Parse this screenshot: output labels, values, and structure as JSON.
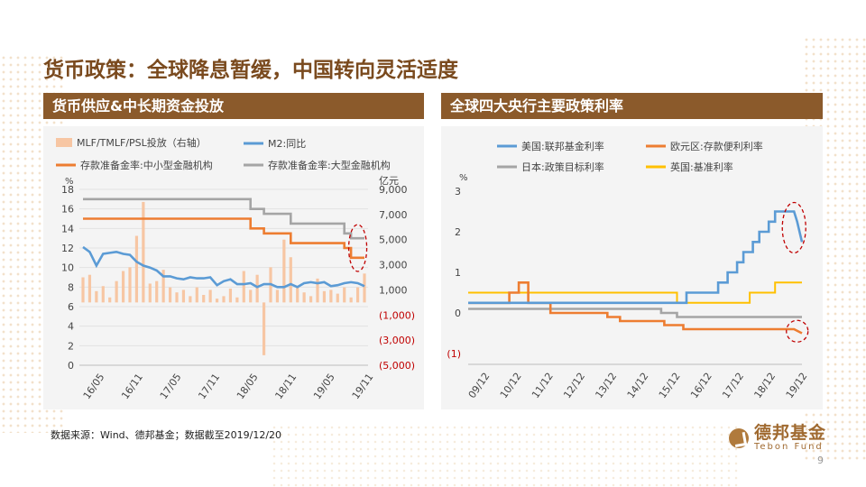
{
  "title": "货币政策：全球降息暂缓，中国转向灵活适度",
  "left_header": "货币供应&中长期资金投放",
  "right_header": "全球四大央行主要政策利率",
  "source": "数据来源：Wind、德邦基金；数据截至2019/12/20",
  "logo": {
    "cn": "德邦基金",
    "en": "Tebon Fund"
  },
  "page_number": "9",
  "colors": {
    "bar_header": "#8b5a2b",
    "title": "#7a4a1e",
    "light_orange": "#f7c6a3",
    "blue": "#5b9bd5",
    "orange": "#ed7d31",
    "gray": "#a5a5a5",
    "gold": "#ffc000",
    "red": "#c00000"
  },
  "chart_data": [
    {
      "type": "bar+line",
      "left_unit": "%",
      "right_unit": "亿元",
      "left_ticks": [
        "0",
        "2",
        "4",
        "6",
        "8",
        "10",
        "12",
        "14",
        "16",
        "18"
      ],
      "right_ticks": [
        "(5,000)",
        "(3,000)",
        "(1,000)",
        "1,000",
        "3,000",
        "5,000",
        "7,000",
        "9,000"
      ],
      "ylim_left": [
        0,
        18
      ],
      "ylim_right": [
        -5000,
        9000
      ],
      "xticks": [
        "16/05",
        "16/11",
        "17/05",
        "17/11",
        "18/05",
        "18/11",
        "19/05",
        "19/11"
      ],
      "legend": [
        "MLF/TMLF/PSL投放（右轴）",
        "M2:同比",
        "存款准备金率:中小型金融机构",
        "存款准备金率:大型金融机构"
      ],
      "bars": {
        "name": "MLF/TMLF/PSL投放（右轴）",
        "x": [
          0,
          1,
          2,
          3,
          4,
          5,
          6,
          7,
          8,
          9,
          10,
          11,
          12,
          13,
          14,
          15,
          16,
          17,
          18,
          19,
          20,
          21,
          22,
          23,
          24,
          25,
          26,
          27,
          28,
          29,
          30,
          31,
          32,
          33,
          34,
          35,
          36,
          37,
          38,
          39,
          40,
          41,
          42
        ],
        "values": [
          2000,
          2200,
          900,
          1300,
          400,
          1700,
          2500,
          2800,
          5300,
          8000,
          1500,
          1700,
          2600,
          1200,
          800,
          1000,
          500,
          1200,
          600,
          1000,
          300,
          500,
          1100,
          400,
          2500,
          1000,
          2200,
          -4200,
          2800,
          1000,
          5000,
          3600,
          1200,
          800,
          500,
          1900,
          900,
          1000,
          700,
          1200,
          400,
          1200,
          2300
        ]
      },
      "series": [
        {
          "name": "M2:同比",
          "x": [
            0,
            1,
            2,
            3,
            4,
            5,
            6,
            7,
            8,
            9,
            10,
            11,
            12,
            13,
            14,
            15,
            16,
            17,
            18,
            19,
            20,
            21,
            22,
            23,
            24,
            25,
            26,
            27,
            28,
            29,
            30,
            31,
            32,
            33,
            34,
            35,
            36,
            37,
            38,
            39,
            40,
            41,
            42
          ],
          "values": [
            12.1,
            11.6,
            10.2,
            11.4,
            11.5,
            11.6,
            11.4,
            11.3,
            10.6,
            10.2,
            10.0,
            9.7,
            9.1,
            9.1,
            8.9,
            8.8,
            9.0,
            8.9,
            8.9,
            9.0,
            8.2,
            8.6,
            8.8,
            8.3,
            8.3,
            8.4,
            8.0,
            8.3,
            8.3,
            8.0,
            8.0,
            8.3,
            8.0,
            8.4,
            8.5,
            8.4,
            8.5,
            8.1,
            8.2,
            8.4,
            8.5,
            8.4,
            8.1
          ]
        },
        {
          "name": "存款准备金率:中小型金融机构",
          "x": [
            0,
            15,
            24,
            25,
            27,
            29,
            31,
            39,
            40,
            42
          ],
          "values": [
            15,
            15,
            15,
            14,
            13.5,
            13.5,
            12.5,
            12,
            11,
            11
          ]
        },
        {
          "name": "存款准备金率:大型金融机构",
          "x": [
            0,
            15,
            24,
            25,
            27,
            29,
            31,
            39,
            40,
            42
          ],
          "values": [
            17,
            17,
            17,
            16,
            15.5,
            15.5,
            14.5,
            13.5,
            13,
            13
          ]
        }
      ]
    },
    {
      "type": "line",
      "unit": "%",
      "yticks": [
        "(1)",
        "0",
        "1",
        "2",
        "3"
      ],
      "ylim": [
        -1,
        3
      ],
      "xticks": [
        "09/12",
        "10/12",
        "11/12",
        "12/12",
        "13/12",
        "14/12",
        "15/12",
        "16/12",
        "17/12",
        "18/12",
        "19/12"
      ],
      "legend": [
        "美国:联邦基金利率",
        "欧元区:存款便利利率",
        "日本:政策目标利率",
        "英国:基准利率"
      ],
      "series": [
        {
          "name": "美国:联邦基金利率",
          "x": [
            0,
            6.9,
            6.9,
            7.9,
            7.9,
            8.2,
            8.2,
            8.5,
            8.5,
            8.7,
            8.7,
            9.0,
            9.0,
            9.2,
            9.2,
            9.5,
            9.5,
            9.7,
            9.7,
            10.0,
            10.0,
            10.3,
            10.4,
            10.55
          ],
          "values": [
            0.25,
            0.25,
            0.5,
            0.5,
            0.75,
            0.75,
            1.0,
            1.0,
            1.25,
            1.25,
            1.5,
            1.5,
            1.75,
            1.75,
            2.0,
            2.0,
            2.25,
            2.25,
            2.5,
            2.5,
            2.5,
            2.5,
            2.25,
            1.75
          ]
        },
        {
          "name": "欧元区:存款便利利率",
          "x": [
            0,
            1.3,
            1.3,
            1.6,
            1.6,
            1.9,
            1.9,
            2.6,
            2.6,
            4.4,
            4.4,
            4.8,
            4.8,
            6.2,
            6.2,
            6.8,
            6.8,
            10.3,
            10.3,
            10.55
          ],
          "values": [
            0.25,
            0.25,
            0.5,
            0.5,
            0.75,
            0.75,
            0.25,
            0.25,
            0.0,
            0.0,
            -0.1,
            -0.1,
            -0.2,
            -0.2,
            -0.3,
            -0.3,
            -0.4,
            -0.4,
            -0.4,
            -0.5
          ]
        },
        {
          "name": "日本:政策目标利率",
          "x": [
            0,
            6.1,
            6.1,
            6.6,
            6.6,
            10.55
          ],
          "values": [
            0.1,
            0.1,
            0.0,
            0.0,
            -0.1,
            -0.1
          ]
        },
        {
          "name": "英国:基准利率",
          "x": [
            0,
            6.6,
            6.6,
            8.9,
            8.9,
            9.7,
            9.7,
            10.55
          ],
          "values": [
            0.5,
            0.5,
            0.25,
            0.25,
            0.5,
            0.5,
            0.75,
            0.75
          ]
        }
      ]
    }
  ]
}
